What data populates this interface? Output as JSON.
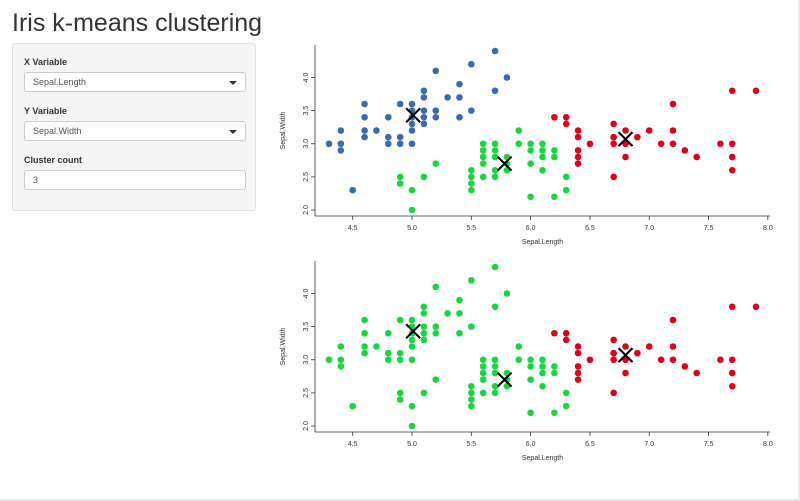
{
  "title": "Iris k-means clustering",
  "sidebar": {
    "x_label": "X Variable",
    "x_value": "Sepal.Length",
    "y_label": "Y Variable",
    "y_value": "Sepal.Width",
    "k_label": "Cluster count",
    "k_value": "3"
  },
  "colors": {
    "cluster1": "#3a6bb0",
    "cluster2": "#17d63e",
    "cluster3": "#e0001b",
    "centroid": "#000000"
  },
  "chart_data": [
    {
      "type": "scatter",
      "xlabel": "Sepal.Length",
      "ylabel": "Sepal.Width",
      "xlim": [
        4.3,
        7.9
      ],
      "ylim": [
        2.0,
        4.4
      ],
      "xticks": [
        "4.5",
        "5.0",
        "5.5",
        "6.0",
        "6.5",
        "7.0",
        "7.5",
        "8.0"
      ],
      "yticks": [
        "2.0",
        "2.5",
        "3.0",
        "3.5",
        "4.0"
      ],
      "series": [
        {
          "cluster": 1,
          "points": [
            [
              4.3,
              3.0
            ],
            [
              4.4,
              2.9
            ],
            [
              4.4,
              3.0
            ],
            [
              4.4,
              3.2
            ],
            [
              4.5,
              2.3
            ],
            [
              4.6,
              3.1
            ],
            [
              4.6,
              3.2
            ],
            [
              4.6,
              3.4
            ],
            [
              4.6,
              3.6
            ],
            [
              4.7,
              3.2
            ],
            [
              4.8,
              3.0
            ],
            [
              4.8,
              3.1
            ],
            [
              4.8,
              3.4
            ],
            [
              4.9,
              3.0
            ],
            [
              4.9,
              3.1
            ],
            [
              4.9,
              3.6
            ],
            [
              5.0,
              3.0
            ],
            [
              5.0,
              3.2
            ],
            [
              5.0,
              3.3
            ],
            [
              5.0,
              3.4
            ],
            [
              5.0,
              3.5
            ],
            [
              5.0,
              3.6
            ],
            [
              5.1,
              3.3
            ],
            [
              5.1,
              3.4
            ],
            [
              5.1,
              3.5
            ],
            [
              5.1,
              3.7
            ],
            [
              5.1,
              3.8
            ],
            [
              5.2,
              3.4
            ],
            [
              5.2,
              3.5
            ],
            [
              5.2,
              4.1
            ],
            [
              5.3,
              3.7
            ],
            [
              5.4,
              3.4
            ],
            [
              5.4,
              3.7
            ],
            [
              5.4,
              3.9
            ],
            [
              5.5,
              3.5
            ],
            [
              5.5,
              4.2
            ],
            [
              5.7,
              3.8
            ],
            [
              5.7,
              4.4
            ],
            [
              5.8,
              4.0
            ]
          ]
        },
        {
          "cluster": 2,
          "points": [
            [
              4.9,
              2.4
            ],
            [
              4.9,
              2.5
            ],
            [
              5.0,
              2.0
            ],
            [
              5.0,
              2.3
            ],
            [
              5.1,
              2.5
            ],
            [
              5.2,
              2.7
            ],
            [
              5.5,
              2.3
            ],
            [
              5.5,
              2.4
            ],
            [
              5.5,
              2.5
            ],
            [
              5.5,
              2.6
            ],
            [
              5.6,
              2.5
            ],
            [
              5.6,
              2.7
            ],
            [
              5.6,
              2.8
            ],
            [
              5.6,
              2.9
            ],
            [
              5.6,
              3.0
            ],
            [
              5.7,
              2.5
            ],
            [
              5.7,
              2.6
            ],
            [
              5.7,
              2.8
            ],
            [
              5.7,
              2.9
            ],
            [
              5.7,
              3.0
            ],
            [
              5.8,
              2.6
            ],
            [
              5.8,
              2.7
            ],
            [
              5.8,
              2.8
            ],
            [
              5.9,
              3.0
            ],
            [
              5.9,
              3.2
            ],
            [
              6.0,
              2.2
            ],
            [
              6.0,
              2.7
            ],
            [
              6.0,
              2.9
            ],
            [
              6.0,
              3.0
            ],
            [
              6.1,
              2.6
            ],
            [
              6.1,
              2.8
            ],
            [
              6.1,
              2.9
            ],
            [
              6.1,
              3.0
            ],
            [
              6.2,
              2.2
            ],
            [
              6.2,
              2.8
            ],
            [
              6.2,
              2.9
            ],
            [
              6.3,
              2.3
            ],
            [
              6.3,
              2.5
            ]
          ]
        },
        {
          "cluster": 3,
          "points": [
            [
              6.2,
              3.4
            ],
            [
              6.3,
              3.3
            ],
            [
              6.3,
              3.4
            ],
            [
              6.4,
              2.7
            ],
            [
              6.4,
              2.8
            ],
            [
              6.4,
              2.9
            ],
            [
              6.4,
              3.1
            ],
            [
              6.4,
              3.2
            ],
            [
              6.5,
              3.0
            ],
            [
              6.7,
              2.5
            ],
            [
              6.7,
              3.0
            ],
            [
              6.7,
              3.1
            ],
            [
              6.7,
              3.3
            ],
            [
              6.8,
              2.8
            ],
            [
              6.8,
              3.0
            ],
            [
              6.8,
              3.2
            ],
            [
              6.9,
              3.1
            ],
            [
              7.0,
              3.2
            ],
            [
              7.1,
              3.0
            ],
            [
              7.2,
              3.0
            ],
            [
              7.2,
              3.2
            ],
            [
              7.2,
              3.6
            ],
            [
              7.3,
              2.9
            ],
            [
              7.4,
              2.8
            ],
            [
              7.6,
              3.0
            ],
            [
              7.7,
              2.6
            ],
            [
              7.7,
              2.8
            ],
            [
              7.7,
              3.0
            ],
            [
              7.7,
              3.8
            ],
            [
              7.9,
              3.8
            ]
          ]
        }
      ],
      "centroids": [
        [
          5.01,
          3.43
        ],
        [
          5.78,
          2.7
        ],
        [
          6.8,
          3.07
        ]
      ]
    },
    {
      "type": "scatter",
      "xlabel": "Sepal.Length",
      "ylabel": "Sepal.Width",
      "xlim": [
        4.3,
        7.9
      ],
      "ylim": [
        2.0,
        4.4
      ],
      "xticks": [
        "4.5",
        "5.0",
        "5.5",
        "6.0",
        "6.5",
        "7.0",
        "7.5",
        "8.0"
      ],
      "yticks": [
        "2.0",
        "2.5",
        "3.0",
        "3.5",
        "4.0"
      ],
      "series": [
        {
          "cluster": 2,
          "points": [
            [
              4.3,
              3.0
            ],
            [
              4.4,
              2.9
            ],
            [
              4.4,
              3.0
            ],
            [
              4.4,
              3.2
            ],
            [
              4.5,
              2.3
            ],
            [
              4.6,
              3.1
            ],
            [
              4.6,
              3.2
            ],
            [
              4.6,
              3.4
            ],
            [
              4.6,
              3.6
            ],
            [
              4.7,
              3.2
            ],
            [
              4.8,
              3.0
            ],
            [
              4.8,
              3.1
            ],
            [
              4.8,
              3.4
            ],
            [
              4.9,
              3.0
            ],
            [
              4.9,
              3.1
            ],
            [
              4.9,
              3.6
            ],
            [
              5.0,
              3.0
            ],
            [
              5.0,
              3.2
            ],
            [
              5.0,
              3.3
            ],
            [
              5.0,
              3.4
            ],
            [
              5.0,
              3.5
            ],
            [
              5.0,
              3.6
            ],
            [
              5.1,
              3.3
            ],
            [
              5.1,
              3.4
            ],
            [
              5.1,
              3.5
            ],
            [
              5.1,
              3.7
            ],
            [
              5.1,
              3.8
            ],
            [
              5.2,
              3.4
            ],
            [
              5.2,
              3.5
            ],
            [
              5.2,
              4.1
            ],
            [
              5.3,
              3.7
            ],
            [
              5.4,
              3.4
            ],
            [
              5.4,
              3.7
            ],
            [
              5.4,
              3.9
            ],
            [
              5.5,
              3.5
            ],
            [
              5.5,
              4.2
            ],
            [
              5.7,
              3.8
            ],
            [
              5.7,
              4.4
            ],
            [
              5.8,
              4.0
            ],
            [
              4.9,
              2.4
            ],
            [
              4.9,
              2.5
            ],
            [
              5.0,
              2.0
            ],
            [
              5.0,
              2.3
            ],
            [
              5.1,
              2.5
            ],
            [
              5.2,
              2.7
            ],
            [
              5.5,
              2.3
            ],
            [
              5.5,
              2.4
            ],
            [
              5.5,
              2.5
            ],
            [
              5.5,
              2.6
            ],
            [
              5.6,
              2.5
            ],
            [
              5.6,
              2.7
            ],
            [
              5.6,
              2.8
            ],
            [
              5.6,
              2.9
            ],
            [
              5.6,
              3.0
            ],
            [
              5.7,
              2.5
            ],
            [
              5.7,
              2.6
            ],
            [
              5.7,
              2.8
            ],
            [
              5.7,
              2.9
            ],
            [
              5.7,
              3.0
            ],
            [
              5.8,
              2.6
            ],
            [
              5.8,
              2.7
            ],
            [
              5.8,
              2.8
            ],
            [
              5.9,
              3.0
            ],
            [
              5.9,
              3.2
            ],
            [
              6.0,
              2.2
            ],
            [
              6.0,
              2.7
            ],
            [
              6.0,
              2.9
            ],
            [
              6.0,
              3.0
            ],
            [
              6.1,
              2.6
            ],
            [
              6.1,
              2.8
            ],
            [
              6.1,
              2.9
            ],
            [
              6.1,
              3.0
            ],
            [
              6.2,
              2.2
            ],
            [
              6.2,
              2.8
            ],
            [
              6.2,
              2.9
            ],
            [
              6.3,
              2.3
            ],
            [
              6.3,
              2.5
            ]
          ]
        },
        {
          "cluster": 3,
          "points": [
            [
              6.2,
              3.4
            ],
            [
              6.3,
              3.3
            ],
            [
              6.3,
              3.4
            ],
            [
              6.4,
              2.7
            ],
            [
              6.4,
              2.8
            ],
            [
              6.4,
              2.9
            ],
            [
              6.4,
              3.1
            ],
            [
              6.4,
              3.2
            ],
            [
              6.5,
              3.0
            ],
            [
              6.7,
              2.5
            ],
            [
              6.7,
              3.0
            ],
            [
              6.7,
              3.1
            ],
            [
              6.7,
              3.3
            ],
            [
              6.8,
              2.8
            ],
            [
              6.8,
              3.0
            ],
            [
              6.8,
              3.2
            ],
            [
              6.9,
              3.1
            ],
            [
              7.0,
              3.2
            ],
            [
              7.1,
              3.0
            ],
            [
              7.2,
              3.0
            ],
            [
              7.2,
              3.2
            ],
            [
              7.2,
              3.6
            ],
            [
              7.3,
              2.9
            ],
            [
              7.4,
              2.8
            ],
            [
              7.6,
              3.0
            ],
            [
              7.7,
              2.6
            ],
            [
              7.7,
              2.8
            ],
            [
              7.7,
              3.0
            ],
            [
              7.7,
              3.8
            ],
            [
              7.9,
              3.8
            ]
          ]
        }
      ],
      "centroids": [
        [
          5.01,
          3.43
        ],
        [
          5.78,
          2.7
        ],
        [
          6.8,
          3.07
        ]
      ]
    }
  ]
}
